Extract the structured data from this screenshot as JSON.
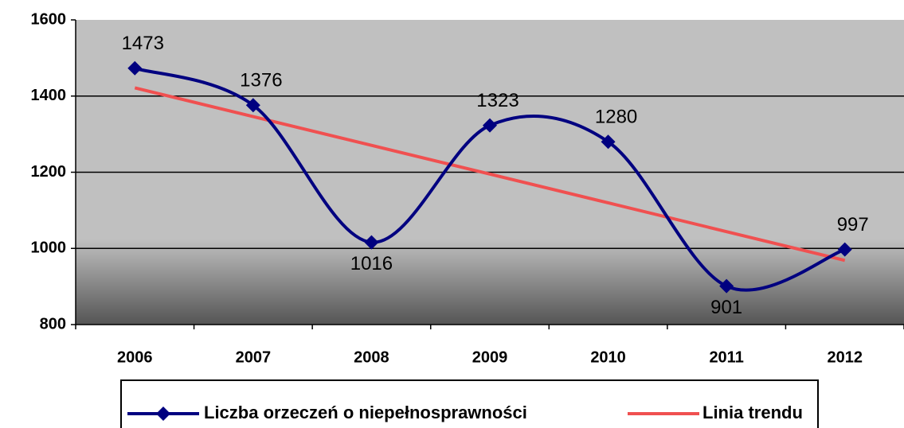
{
  "chart_data": {
    "type": "line",
    "categories": [
      "2006",
      "2007",
      "2008",
      "2009",
      "2010",
      "2011",
      "2012"
    ],
    "series": [
      {
        "name": "Liczba orzeczeń o niepełnosprawności",
        "color": "#000080",
        "values": [
          1473,
          1376,
          1016,
          1323,
          1280,
          901,
          997
        ]
      },
      {
        "name": "Linia trendu",
        "color": "#f05050",
        "values": [
          1421.6,
          1346.1,
          1270.6,
          1195.1,
          1119.6,
          1044.1,
          968.6
        ]
      }
    ],
    "ylim": [
      800,
      1600
    ],
    "yticks": [
      800,
      1000,
      1200,
      1400,
      1600
    ],
    "grid": true,
    "legend": "bottom"
  }
}
